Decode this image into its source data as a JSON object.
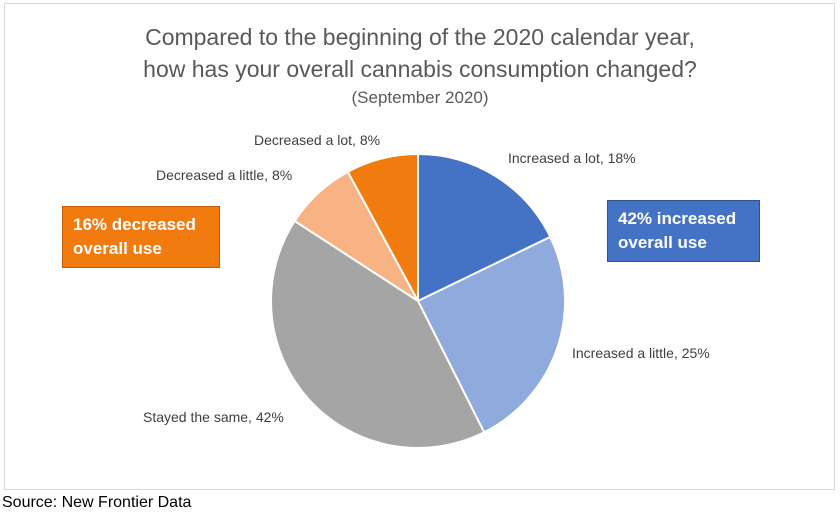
{
  "chart_data": {
    "type": "pie",
    "title": "Compared to the beginning of the 2020 calendar year,",
    "title_line2": "how has your overall cannabis consumption changed?",
    "subtitle": "(September 2020)",
    "slices": [
      {
        "label": "Increased a lot, 18%",
        "value": 18,
        "color": "#4472c4"
      },
      {
        "label": "Increased a little, 25%",
        "value": 25,
        "color": "#8faadc"
      },
      {
        "label": "Stayed the same, 42%",
        "value": 42,
        "color": "#a5a5a5"
      },
      {
        "label": "Decreased a little, 8%",
        "value": 8,
        "color": "#f8b384"
      },
      {
        "label": "Decreased a lot, 8%",
        "value": 8,
        "color": "#f27b0f"
      }
    ],
    "annotations": {
      "decreased_line1": "16% decreased",
      "decreased_line2": "overall use",
      "increased_line1": "42% increased",
      "increased_line2": "overall use"
    }
  },
  "source": "Source: New Frontier Data"
}
